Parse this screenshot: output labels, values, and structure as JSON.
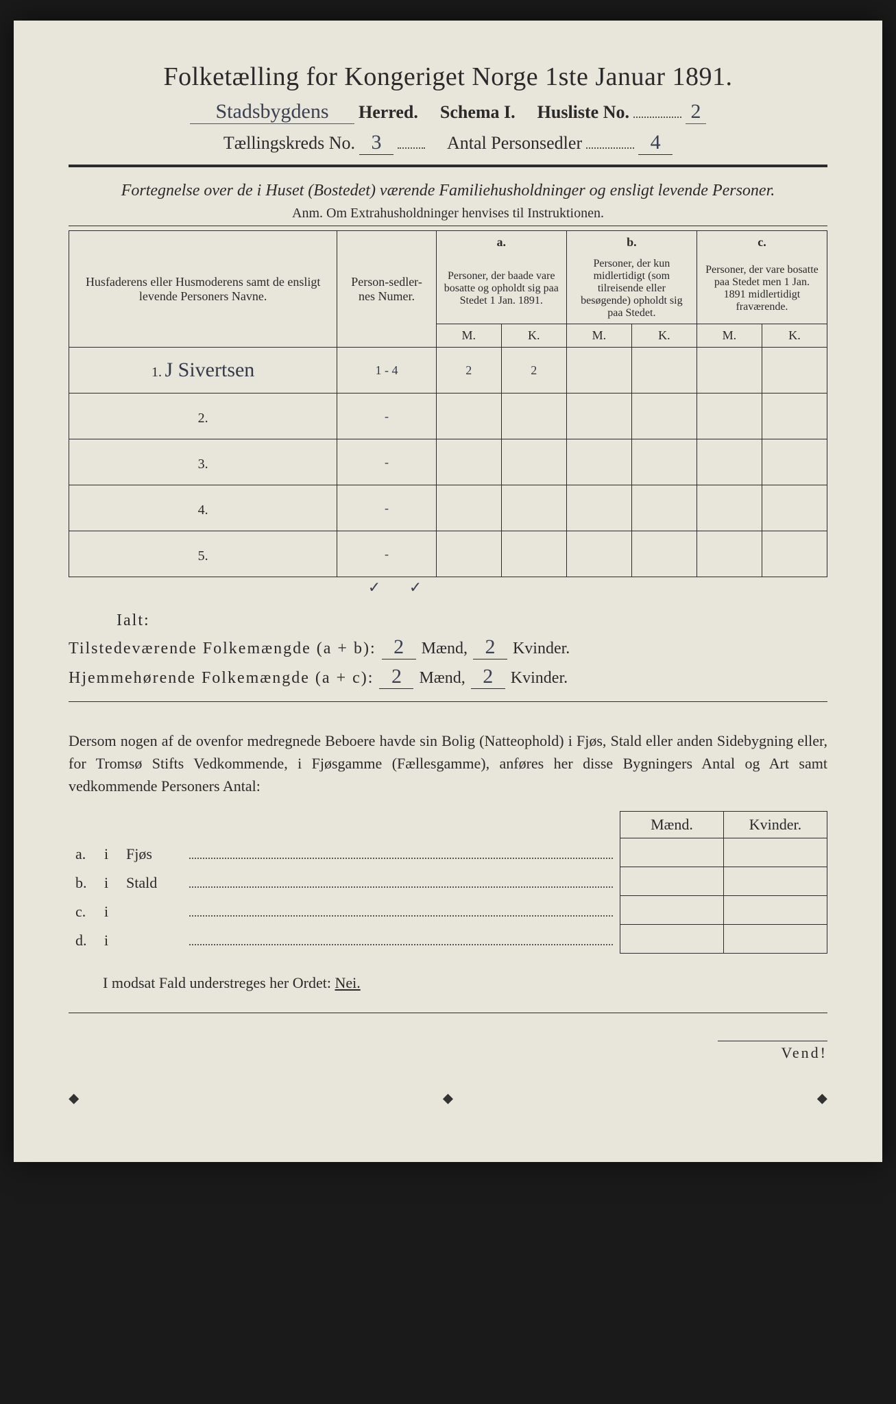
{
  "title": "Folketælling for Kongeriget Norge 1ste Januar 1891.",
  "line2": {
    "herred_hand": "Stadsbygdens",
    "herred": "Herred.",
    "schema": "Schema I.",
    "husliste": "Husliste No.",
    "husliste_no": "2"
  },
  "line3": {
    "kreds": "Tællingskreds No.",
    "kreds_no": "3",
    "antal": "Antal Personsedler",
    "antal_no": "4"
  },
  "subtitle": "Fortegnelse over de i Huset (Bostedet) værende Familiehusholdninger og ensligt levende Personer.",
  "anm": "Anm.  Om Extrahusholdninger henvises til Instruktionen.",
  "table": {
    "col_name": "Husfaderens eller Husmoderens samt de ensligt levende Personers Navne.",
    "col_num": "Person-sedler-nes Numer.",
    "col_a_top": "a.",
    "col_a": "Personer, der baade vare bosatte og opholdt sig paa Stedet 1 Jan. 1891.",
    "col_b_top": "b.",
    "col_b": "Personer, der kun midlertidigt (som tilreisende eller besøgende) opholdt sig paa Stedet.",
    "col_c_top": "c.",
    "col_c": "Personer, der vare bosatte paa Stedet men 1 Jan. 1891 midlertidigt fraværende.",
    "m": "M.",
    "k": "K.",
    "rows": [
      {
        "n": "1.",
        "name": "J Sivertsen",
        "num": "1 - 4",
        "am": "2",
        "ak": "2",
        "bm": "",
        "bk": "",
        "cm": "",
        "ck": ""
      },
      {
        "n": "2.",
        "name": "",
        "num": "-",
        "am": "",
        "ak": "",
        "bm": "",
        "bk": "",
        "cm": "",
        "ck": ""
      },
      {
        "n": "3.",
        "name": "",
        "num": "-",
        "am": "",
        "ak": "",
        "bm": "",
        "bk": "",
        "cm": "",
        "ck": ""
      },
      {
        "n": "4.",
        "name": "",
        "num": "-",
        "am": "",
        "ak": "",
        "bm": "",
        "bk": "",
        "cm": "",
        "ck": ""
      },
      {
        "n": "5.",
        "name": "",
        "num": "-",
        "am": "",
        "ak": "",
        "bm": "",
        "bk": "",
        "cm": "",
        "ck": ""
      }
    ],
    "tally": {
      "am": "✓",
      "ak": "✓"
    }
  },
  "ialt": "Ialt:",
  "pop": {
    "l1a": "Tilstedeværende Folkemængde (a + b):",
    "l1m": "2",
    "maend": "Mænd,",
    "l1k": "2",
    "kvinder": "Kvinder.",
    "l2a": "Hjemmehørende Folkemængde (a + c):",
    "l2m": "2",
    "l2k": "2"
  },
  "para": "Dersom nogen af de ovenfor medregnede Beboere havde sin Bolig (Natteophold) i Fjøs, Stald eller anden Sidebygning eller, for Tromsø Stifts Vedkommende, i Fjøsgamme (Fællesgamme), anføres her disse Bygningers Antal og Art samt vedkommende Personers Antal:",
  "side": {
    "maend": "Mænd.",
    "kvinder": "Kvinder.",
    "rows": [
      {
        "k": "a.",
        "i": "i",
        "lbl": "Fjøs"
      },
      {
        "k": "b.",
        "i": "i",
        "lbl": "Stald"
      },
      {
        "k": "c.",
        "i": "i",
        "lbl": ""
      },
      {
        "k": "d.",
        "i": "i",
        "lbl": ""
      }
    ]
  },
  "nei": {
    "pre": "I modsat Fald understreges her Ordet: ",
    "word": "Nei."
  },
  "vend": "Vend!"
}
